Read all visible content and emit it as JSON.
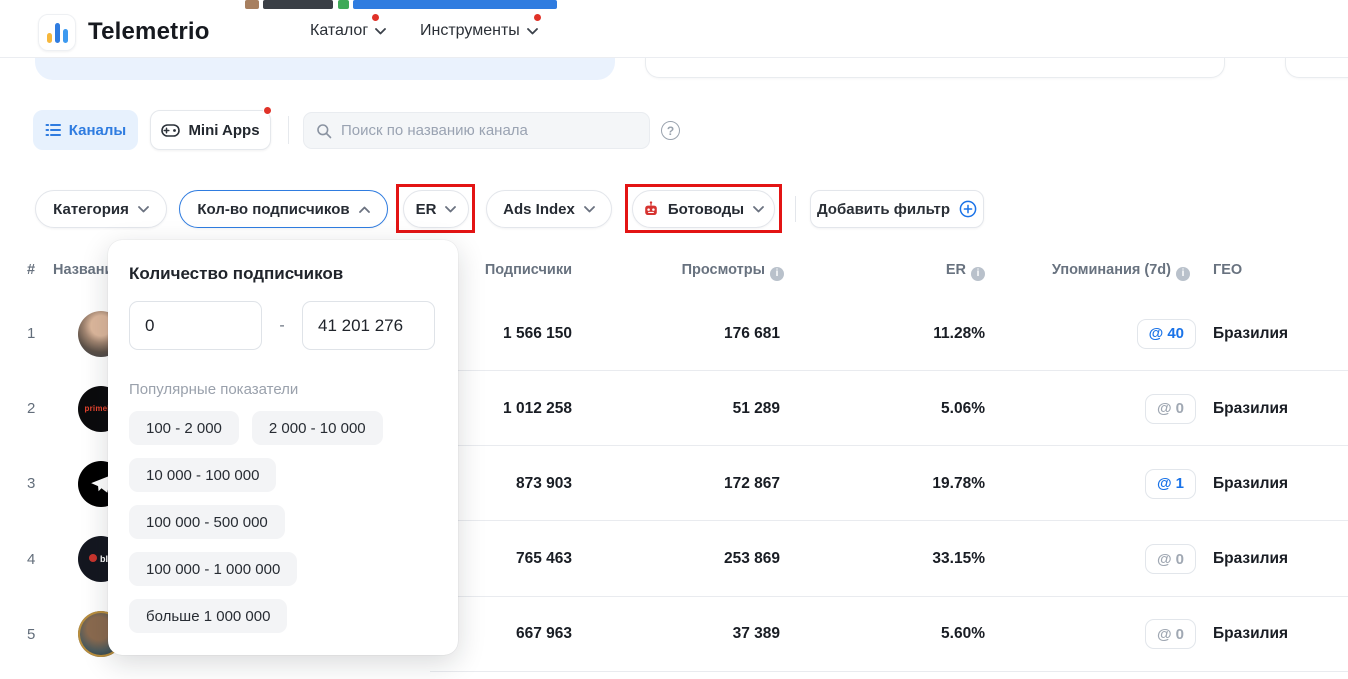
{
  "header": {
    "brand": "Telemetrio",
    "nav_catalog": "Каталог",
    "nav_tools": "Инструменты"
  },
  "toolbar": {
    "channels_tab": "Каналы",
    "mini_apps_tab": "Mini Apps",
    "search_placeholder": "Поиск по названию канала",
    "help": "?"
  },
  "filters": {
    "category": "Категория",
    "subscribers": "Кол-во подписчиков",
    "er": "ER",
    "ads_index": "Ads Index",
    "botovody": "Ботоводы",
    "add_filter": "Добавить фильтр"
  },
  "popup": {
    "title": "Количество подписчиков",
    "min_value": "0",
    "separator": "-",
    "max_value": "41 201 276",
    "presets_label": "Популярные показатели",
    "presets": [
      "100 - 2 000",
      "2 000 - 10 000",
      "10 000 - 100 000",
      "100 000 - 500 000",
      "100 000 - 1 000 000",
      "больше 1 000 000"
    ]
  },
  "table": {
    "mentions_prefix": "@",
    "headers": {
      "num": "#",
      "name": "Название",
      "subscribers": "Подписчики",
      "views": "Просмотры",
      "er": "ER",
      "mentions": "Упоминания (7d)",
      "geo": "ГЕО"
    },
    "rows": [
      {
        "num": "1",
        "avatar": "photo-man",
        "avatar_text": "",
        "subscribers": "1 566 150",
        "views": "176 681",
        "er": "11.28%",
        "mentions": "40",
        "mentions_active": true,
        "geo": "Бразилия"
      },
      {
        "num": "2",
        "avatar": "prime",
        "avatar_text": "primeFL",
        "subscribers": "1 012 258",
        "views": "51 289",
        "er": "5.06%",
        "mentions": "0",
        "mentions_active": false,
        "geo": "Бразилия"
      },
      {
        "num": "3",
        "avatar": "telegram",
        "avatar_text": "",
        "subscribers": "873 903",
        "views": "172 867",
        "er": "19.78%",
        "mentions": "1",
        "mentions_active": true,
        "geo": "Бразилия"
      },
      {
        "num": "4",
        "avatar": "blaze",
        "avatar_text": "bla",
        "subscribers": "765 463",
        "views": "253 869",
        "er": "33.15%",
        "mentions": "0",
        "mentions_active": false,
        "geo": "Бразилия"
      },
      {
        "num": "5",
        "avatar": "photo-man-2",
        "avatar_text": "",
        "subscribers": "667 963",
        "views": "37 389",
        "er": "5.60%",
        "mentions": "0",
        "mentions_active": false,
        "geo": "Бразилия"
      }
    ]
  },
  "colors": {
    "accent_blue": "#2f7ce0",
    "link_blue": "#1a73e8",
    "annotation_red": "#e31414",
    "alert_dot_red": "#e03228",
    "robot_red": "#d63330"
  }
}
